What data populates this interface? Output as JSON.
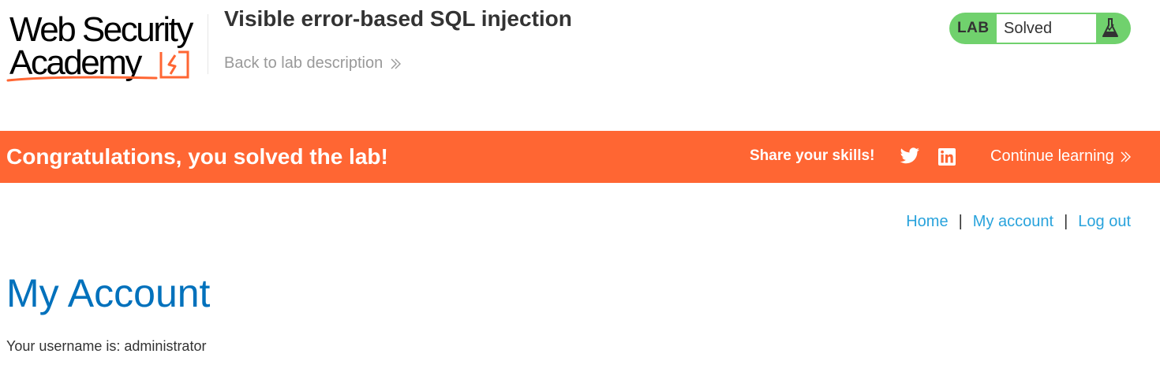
{
  "header": {
    "logo": {
      "line1": "Web Security",
      "line2": "Academy"
    },
    "lab_title": "Visible error-based SQL injection",
    "back_link": "Back to lab description",
    "lab_status": {
      "label": "LAB",
      "status": "Solved",
      "icon": "flask-icon"
    }
  },
  "banner": {
    "message": "Congratulations, you solved the lab!",
    "share_label": "Share your skills!",
    "icons": [
      "twitter-icon",
      "linkedin-icon"
    ],
    "continue_label": "Continue learning"
  },
  "nav": {
    "home": "Home",
    "my_account": "My account",
    "log_out": "Log out",
    "separator": "|"
  },
  "main": {
    "heading": "My Account",
    "username_line": "Your username is: administrator"
  },
  "colors": {
    "banner": "#ff6633",
    "status_green": "#70d16d",
    "link": "#29a3dc",
    "heading": "#0071bc"
  }
}
